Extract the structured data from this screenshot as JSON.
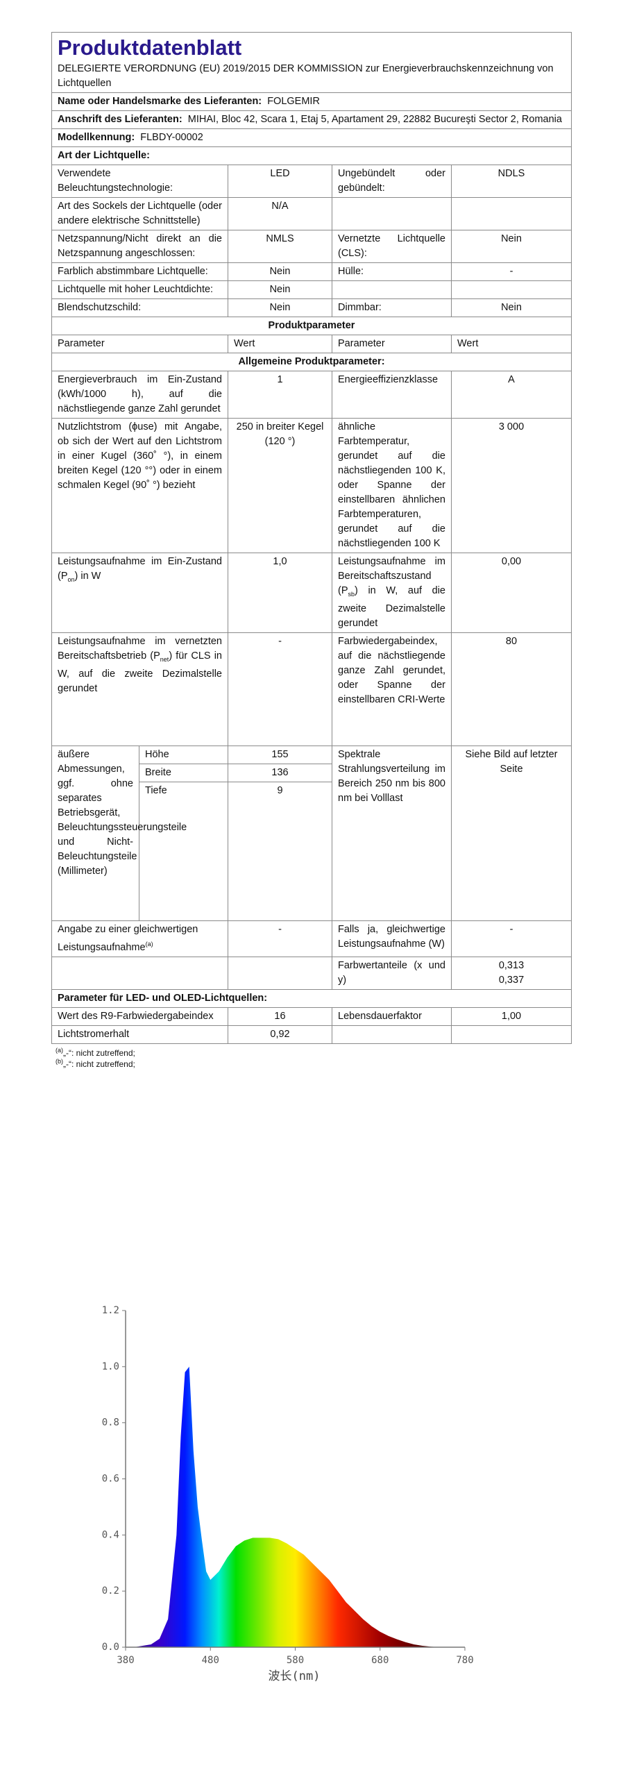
{
  "header": {
    "title": "Produktdatenblatt",
    "regulation": "DELEGIERTE VERORDNUNG (EU) 2019/2015 DER KOMMISSION zur Energieverbrauchskennzeichnung von Lichtquellen"
  },
  "supplier": {
    "name_label": "Name oder Handelsmarke des Lieferanten:",
    "name": "FOLGEMIR",
    "address_label": "Anschrift des Lieferanten:",
    "address": "MIHAI, Bloc 42, Scara 1, Etaj 5, Apartament 29, 22882 Bucureşti Sector 2, Romania",
    "model_label": "Modellkennung:",
    "model": "FLBDY-00002"
  },
  "light_source": {
    "title": "Art der Lichtquelle:",
    "rows": [
      [
        "Verwendete Beleuchtungstechnologie:",
        "LED",
        "Ungebündelt oder gebündelt:",
        "NDLS"
      ],
      [
        "Art des Sockels der Lichtquelle (oder andere elektrische Schnittstelle)",
        "N/A"
      ],
      [
        "Netzspannung/Nicht direkt an die Netzspannung angeschlossen:",
        "NMLS",
        "Vernetzte Lichtquelle (CLS):",
        "Nein"
      ],
      [
        "Farblich abstimmbare Lichtquelle:",
        "Nein",
        "Hülle:",
        "-"
      ],
      [
        "Lichtquelle mit hoher Leuchtdichte:",
        "Nein"
      ],
      [
        "Blendschutzschild:",
        "Nein",
        "Dimmbar:",
        "Nein"
      ]
    ]
  },
  "product": {
    "title": "Produktparameter",
    "head": [
      "Parameter",
      "Wert",
      "Parameter",
      "Wert"
    ],
    "general_title": "Allgemeine Produktparameter:",
    "rows": [
      [
        "Energieverbrauch im Ein-Zustand (kWh/1000 h), auf die nächstliegende ganze Zahl gerundet",
        "1",
        "Energieeffizienzklasse",
        "A"
      ],
      [
        "Nutzlichtstrom (ϕuse) mit Angabe, ob sich der Wert auf den Lichtstrom in einer Kugel (360˚ °), in einem breiten Kegel (120 °°) oder in einem schmalen Kegel (90˚ °) bezieht",
        "250 in breiter Kegel (120 °)",
        "ähnliche Farbtemperatur, gerundet auf die nächstliegenden 100 K, oder Spanne der einstellbaren ähnlichen Farbtemperaturen, gerundet auf die nächstliegenden 100 K",
        "3 000"
      ],
      [
        [
          "Leistungsaufnahme im Ein-Zustand (P",
          "on",
          ") in W"
        ],
        "1,0",
        [
          "Leistungsaufnahme im Bereitschaftszustand (P",
          "sb",
          ") in W, auf die zweite Dezimalstelle gerundet"
        ],
        "0,00"
      ],
      [
        [
          "Leistungsaufnahme im vernetzten Bereitschaftsbetrieb (P",
          "net",
          ") für CLS in W, auf die zweite Dezimalstelle gerundet"
        ],
        "-",
        "Farbwiedergabeindex, auf die nächstliegende ganze Zahl gerundet, oder Spanne der einstellbaren CRI-Werte",
        "80"
      ],
      [
        [
          "Angabe zu einer gleichwertigen Leistungsaufnahme",
          "(a)"
        ],
        "-",
        "Falls ja, gleichwertige Leistungsaufnahme (W)",
        "-"
      ]
    ],
    "dimensions": {
      "label": "äußere Abmessungen, ggf. ohne separates Betriebsgerät, Beleuchtungssteuerungsteile und Nicht-Beleuchtungsteile (Millimeter)",
      "items": [
        [
          "Höhe",
          "155"
        ],
        [
          "Breite",
          "136"
        ],
        [
          "Tiefe",
          "9"
        ]
      ],
      "param": "Spektrale Strahlungsverteilung im Bereich 250 nm bis 800 nm bei Volllast",
      "value": "Siehe Bild auf letzter Seite"
    },
    "chromaticity": {
      "label": "Farbwertanteile (x und y)",
      "values": [
        "0,313",
        "0,337"
      ]
    }
  },
  "led": {
    "title": "Parameter für LED- und OLED-Lichtquellen:",
    "rows": [
      [
        "Wert des R9-Farbwiedergabeindex",
        "16",
        "Lebensdauerfaktor",
        "1,00"
      ],
      [
        "Lichtstromerhalt",
        "0,92"
      ]
    ]
  },
  "footnotes": [
    {
      "mark": "(a)",
      "text": "„-“: nicht zutreffend;"
    },
    {
      "mark": "(b)",
      "text": "„-“: nicht zutreffend;"
    }
  ],
  "chart_data": {
    "type": "area",
    "xlabel": "波长(nm)",
    "x": [
      380,
      390,
      400,
      410,
      420,
      430,
      440,
      445,
      450,
      455,
      460,
      465,
      470,
      475,
      480,
      490,
      500,
      510,
      520,
      530,
      540,
      550,
      560,
      570,
      580,
      590,
      600,
      610,
      620,
      630,
      640,
      650,
      660,
      670,
      680,
      690,
      700,
      710,
      720,
      730,
      740,
      750,
      780
    ],
    "values": [
      0,
      0,
      0.005,
      0.01,
      0.03,
      0.1,
      0.4,
      0.75,
      0.98,
      1.0,
      0.7,
      0.5,
      0.38,
      0.27,
      0.24,
      0.27,
      0.32,
      0.36,
      0.38,
      0.39,
      0.39,
      0.39,
      0.385,
      0.37,
      0.35,
      0.33,
      0.3,
      0.27,
      0.24,
      0.2,
      0.16,
      0.13,
      0.1,
      0.075,
      0.055,
      0.04,
      0.028,
      0.018,
      0.01,
      0.005,
      0.002,
      0,
      0
    ],
    "xlim": [
      380,
      780
    ],
    "ylim": [
      0,
      1.2
    ],
    "xticks": [
      380,
      480,
      580,
      680,
      780
    ],
    "yticks": [
      {
        "value": 0,
        "label": "0.0"
      },
      {
        "value": 0.2,
        "label": "0.2"
      },
      {
        "value": 0.4,
        "label": "0.4"
      },
      {
        "value": 0.6,
        "label": "0.6"
      },
      {
        "value": 0.8,
        "label": "0.8"
      },
      {
        "value": 1.0,
        "label": "1.0"
      },
      {
        "value": 1.2,
        "label": "1.2"
      }
    ]
  }
}
